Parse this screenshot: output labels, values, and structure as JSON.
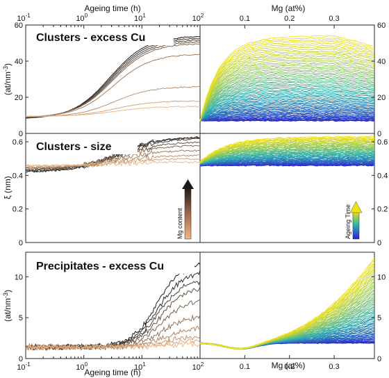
{
  "chart_data": {
    "type": "line",
    "top_xlabel_left": "Ageing time (h)",
    "top_xlabel_right": "Mg (at%)",
    "bottom_xlabel_left": "Ageing time (h)",
    "bottom_xlabel_right": "Mg (at%)",
    "time_ticks": [
      "10",
      "10",
      "10",
      "10"
    ],
    "time_exps": [
      "-1",
      "0",
      "1",
      "2"
    ],
    "mg_ticks": [
      "0.1",
      "0.2",
      "0.3"
    ],
    "mg_range": [
      0,
      0.39
    ],
    "time_range_log10": [
      -1,
      2
    ],
    "xscale_time": "log",
    "panels": [
      {
        "title": "Clusters - excess Cu",
        "ylabel_text": "(at/nm",
        "ylabel_exp": "-3",
        "ylabel_close": ")",
        "ylim": [
          0,
          60
        ],
        "yticks": [
          "0",
          "20",
          "40",
          "60"
        ],
        "time_series_final_values": [
          54,
          53,
          52,
          51,
          50,
          44,
          26,
          18,
          15
        ],
        "mg_series_max_value": 54
      },
      {
        "title": "Clusters - size",
        "ylabel_text": "ξ (nm)",
        "ylim": [
          0,
          0.65
        ],
        "yticks": [
          "0",
          "0.2",
          "0.4",
          "0.6"
        ],
        "time_series_final_values": [
          0.63,
          0.63,
          0.62,
          0.6,
          0.58,
          0.55,
          0.52,
          0.5,
          0.48
        ],
        "mg_series_max_value": 0.63
      },
      {
        "title": "Precipitates - excess Cu",
        "ylabel_text": "(at/nm",
        "ylabel_exp": "-3",
        "ylabel_close": ")",
        "ylim": [
          0,
          13
        ],
        "yticks": [
          "0",
          "5",
          "10"
        ],
        "time_series_final_values": [
          12,
          11,
          10,
          9,
          7.5,
          5.5,
          4,
          3,
          2.5,
          2
        ],
        "mg_series_max_value": 12
      }
    ],
    "colorbar_left_label": "Mg content",
    "colorbar_right_label": "Ageing Time",
    "colors": {
      "mg_low": "#f0b888",
      "mg_high": "#1a1a1a",
      "time_early": "#2b1fd0",
      "time_mid": "#30b0b0",
      "time_late": "#f2e010"
    }
  }
}
